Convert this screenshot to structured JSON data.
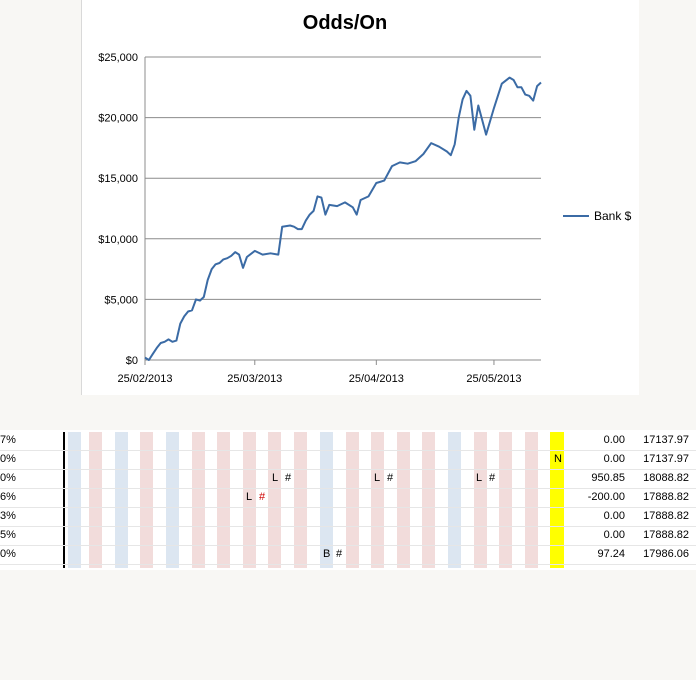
{
  "chart_data": {
    "type": "line",
    "title": "Odds/On",
    "xlabel": "",
    "ylabel": "",
    "x_tick_labels": [
      "25/02/2013",
      "25/03/2013",
      "25/04/2013",
      "25/05/2013"
    ],
    "y_tick_labels": [
      "$0",
      "$5,000",
      "$10,000",
      "$15,000",
      "$20,000",
      "$25,000"
    ],
    "ylim": [
      0,
      25000
    ],
    "grid": true,
    "legend_position": "right",
    "series": [
      {
        "name": "Bank $",
        "color": "#3b6ba5",
        "x": [
          "2013-02-25",
          "2013-02-26",
          "2013-02-27",
          "2013-02-28",
          "2013-03-01",
          "2013-03-02",
          "2013-03-03",
          "2013-03-04",
          "2013-03-05",
          "2013-03-06",
          "2013-03-07",
          "2013-03-08",
          "2013-03-09",
          "2013-03-10",
          "2013-03-11",
          "2013-03-12",
          "2013-03-13",
          "2013-03-14",
          "2013-03-15",
          "2013-03-16",
          "2013-03-17",
          "2013-03-18",
          "2013-03-19",
          "2013-03-20",
          "2013-03-21",
          "2013-03-22",
          "2013-03-23",
          "2013-03-25",
          "2013-03-27",
          "2013-03-29",
          "2013-03-31",
          "2013-04-01",
          "2013-04-03",
          "2013-04-04",
          "2013-04-05",
          "2013-04-06",
          "2013-04-07",
          "2013-04-08",
          "2013-04-09",
          "2013-04-10",
          "2013-04-11",
          "2013-04-12",
          "2013-04-13",
          "2013-04-15",
          "2013-04-17",
          "2013-04-19",
          "2013-04-20",
          "2013-04-21",
          "2013-04-23",
          "2013-04-25",
          "2013-04-27",
          "2013-04-29",
          "2013-05-01",
          "2013-05-03",
          "2013-05-05",
          "2013-05-07",
          "2013-05-09",
          "2013-05-11",
          "2013-05-13",
          "2013-05-14",
          "2013-05-15",
          "2013-05-16",
          "2013-05-17",
          "2013-05-18",
          "2013-05-19",
          "2013-05-20",
          "2013-05-21",
          "2013-05-23",
          "2013-05-25",
          "2013-05-27",
          "2013-05-29",
          "2013-05-30",
          "2013-05-31",
          "2013-06-01",
          "2013-06-02",
          "2013-06-03",
          "2013-06-04",
          "2013-06-05",
          "2013-06-06"
        ],
        "values": [
          200,
          0,
          500,
          1000,
          1400,
          1500,
          1700,
          1500,
          1600,
          3000,
          3600,
          4000,
          4100,
          5000,
          4900,
          5200,
          6600,
          7500,
          7900,
          8000,
          8300,
          8400,
          8600,
          8900,
          8700,
          7600,
          8500,
          9000,
          8700,
          8800,
          8700,
          11000,
          11100,
          11000,
          10800,
          10800,
          11500,
          12000,
          12300,
          13500,
          13400,
          12000,
          12800,
          12700,
          13000,
          12600,
          12000,
          13200,
          13500,
          14600,
          14800,
          16000,
          16300,
          16200,
          16400,
          17000,
          17900,
          17600,
          17200,
          16900,
          17800,
          20000,
          21500,
          22200,
          21800,
          19000,
          21000,
          18600,
          20800,
          22800,
          23300,
          23100,
          22500,
          22500,
          21900,
          21800,
          21400,
          22600,
          22900
        ]
      }
    ]
  },
  "sheet": {
    "rows": [
      {
        "pct": "7%",
        "v1": "0.00",
        "v2": "17137.97"
      },
      {
        "pct": "0%",
        "v1": "0.00",
        "v2": "17137.97"
      },
      {
        "pct": "0%",
        "v1": "950.85",
        "v2": "18088.82"
      },
      {
        "pct": "6%",
        "v1": "-200.00",
        "v2": "17888.82"
      },
      {
        "pct": "3%",
        "v1": "0.00",
        "v2": "17888.82"
      },
      {
        "pct": "5%",
        "v1": "0.00",
        "v2": "17888.82"
      },
      {
        "pct": "0%",
        "v1": "97.24",
        "v2": "17986.06"
      }
    ],
    "marks": {
      "n_cell": "N",
      "l1": "L",
      "h1": "#",
      "l2": "L",
      "h2": "#",
      "l3": "L",
      "h3": "#",
      "l4": "L",
      "h4": "#",
      "b1": "B",
      "h5": "#"
    }
  }
}
